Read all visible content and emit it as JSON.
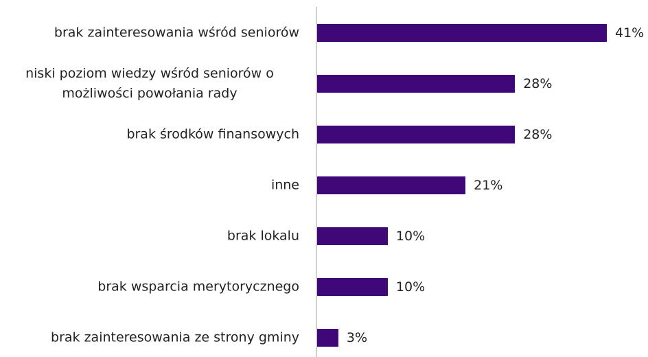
{
  "chart_data": {
    "type": "bar",
    "orientation": "horizontal",
    "categories": [
      "brak zainteresowania wśród seniorów",
      "niski poziom wiedzy wśród seniorów o możliwości powołania rady",
      "brak środków finansowych",
      "inne",
      "brak lokalu",
      "brak wsparcia merytorycznego",
      "brak zainteresowania ze strony gminy"
    ],
    "values": [
      41,
      28,
      28,
      21,
      10,
      10,
      3
    ],
    "value_labels": [
      "41%",
      "28%",
      "28%",
      "21%",
      "10%",
      "10%",
      "3%"
    ],
    "color": "#3f0778"
  }
}
